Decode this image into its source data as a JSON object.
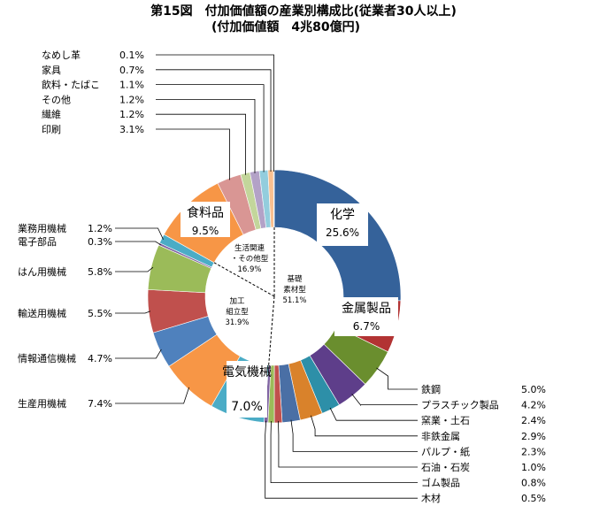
{
  "chart_data": {
    "type": "donut",
    "title": "第15図　付加価値額の産業別構成比(従業者30人以上)",
    "subtitle": "(付加価値額　4兆80億円)",
    "series": [
      {
        "name": "化学",
        "value": 25.6,
        "color": "#35629a",
        "label": "化学",
        "value_text": "25.6%"
      },
      {
        "name": "金属製品",
        "value": 6.7,
        "color": "#b23333",
        "label": "金属製品",
        "value_text": "6.7%"
      },
      {
        "name": "鉄鋼",
        "value": 5.0,
        "color": "#6a8e2e",
        "label": "鉄鋼",
        "value_text": "5.0%"
      },
      {
        "name": "プラスチック製品",
        "value": 4.2,
        "color": "#5e3e8a",
        "label": "プラスチック製品",
        "value_text": "4.2%"
      },
      {
        "name": "窯業・土石",
        "value": 2.4,
        "color": "#2d8fa8",
        "label": "窯業・土石",
        "value_text": "2.4%"
      },
      {
        "name": "非鉄金属",
        "value": 2.9,
        "color": "#d9822b",
        "label": "非鉄金属",
        "value_text": "2.9%"
      },
      {
        "name": "パルプ・紙",
        "value": 2.3,
        "color": "#4a6fa5",
        "label": "パルプ・紙",
        "value_text": "2.3%"
      },
      {
        "name": "石油・石炭",
        "value": 1.0,
        "color": "#c0504d",
        "label": "石油・石炭",
        "value_text": "1.0%"
      },
      {
        "name": "ゴム製品",
        "value": 0.8,
        "color": "#9bbb59",
        "label": "ゴム製品",
        "value_text": "0.8%"
      },
      {
        "name": "木材",
        "value": 0.5,
        "color": "#8064a2",
        "label": "木材",
        "value_text": "0.5%"
      },
      {
        "name": "電気機械",
        "value": 7.0,
        "color": "#4bacc6",
        "label": "電気機械",
        "value_text": "7.0%"
      },
      {
        "name": "生産用機械",
        "value": 7.4,
        "color": "#f79646",
        "label": "生産用機械",
        "value_text": "7.4%"
      },
      {
        "name": "情報通信機械",
        "value": 4.7,
        "color": "#4f81bd",
        "label": "情報通信機械",
        "value_text": "4.7%"
      },
      {
        "name": "輸送用機械",
        "value": 5.5,
        "color": "#c0504d",
        "label": "輸送用機械",
        "value_text": "5.5%"
      },
      {
        "name": "はん用機械",
        "value": 5.8,
        "color": "#9bbb59",
        "label": "はん用機械",
        "value_text": "5.8%"
      },
      {
        "name": "電子部品",
        "value": 0.3,
        "color": "#8064a2",
        "label": "電子部品",
        "value_text": "0.3%"
      },
      {
        "name": "業務用機械",
        "value": 1.2,
        "color": "#4bacc6",
        "label": "業務用機械",
        "value_text": "1.2%"
      },
      {
        "name": "食料品",
        "value": 9.5,
        "color": "#f79646",
        "label": "食料品",
        "value_text": "9.5%"
      },
      {
        "name": "印刷",
        "value": 3.1,
        "color": "#d99694",
        "label": "印刷",
        "value_text": "3.1%"
      },
      {
        "name": "繊維",
        "value": 1.2,
        "color": "#c3d69b",
        "label": "繊維",
        "value_text": "1.2%"
      },
      {
        "name": "その他",
        "value": 1.2,
        "color": "#b3a2c7",
        "label": "その他",
        "value_text": "1.2%"
      },
      {
        "name": "飲料・たばこ",
        "value": 1.1,
        "color": "#93cddd",
        "label": "飲料・たばこ",
        "value_text": "1.1%"
      },
      {
        "name": "家具",
        "value": 0.7,
        "color": "#fac090",
        "label": "家具",
        "value_text": "0.7%"
      },
      {
        "name": "なめし革",
        "value": 0.1,
        "color": "#95b3d7",
        "label": "なめし革",
        "value_text": "0.1%"
      }
    ],
    "groups": [
      {
        "name": "基礎素材型",
        "line1": "基礎",
        "line2": "素材型",
        "value_text": "51.1%"
      },
      {
        "name": "加工組立型",
        "line1": "加工",
        "line2": "組立型",
        "value_text": "31.9%"
      },
      {
        "name": "生活関連・その他型",
        "line1": "生活関連",
        "line2": "・その他型",
        "value_text": "16.9%"
      }
    ],
    "start_angle_deg": 0,
    "direction": "clockwise"
  }
}
